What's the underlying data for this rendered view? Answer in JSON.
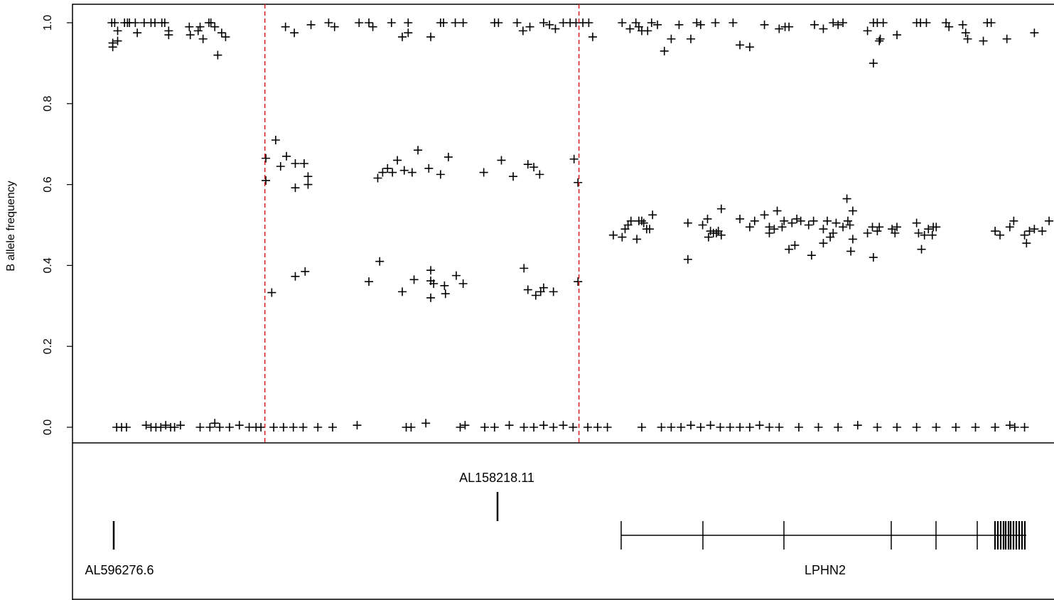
{
  "chart_data": {
    "type": "scatter",
    "ylabel": "B allele frequency",
    "xlabel": "",
    "ylim": [
      0,
      1
    ],
    "yticks": [
      "0.0",
      "0.2",
      "0.4",
      "0.6",
      "0.8",
      "1.0"
    ],
    "marker": "+",
    "marker_color": "#000000",
    "boundary_color": "#d62728",
    "boundaries": [
      0.196,
      0.516
    ],
    "points": [
      [
        0.04,
        1.0
      ],
      [
        0.043,
        1.0
      ],
      [
        0.041,
        0.95
      ],
      [
        0.041,
        0.94
      ],
      [
        0.046,
        0.98
      ],
      [
        0.046,
        0.955
      ],
      [
        0.053,
        1.0
      ],
      [
        0.056,
        1.0
      ],
      [
        0.058,
        1.0
      ],
      [
        0.064,
        1.0
      ],
      [
        0.066,
        0.975
      ],
      [
        0.073,
        1.0
      ],
      [
        0.08,
        1.0
      ],
      [
        0.084,
        1.0
      ],
      [
        0.091,
        1.0
      ],
      [
        0.094,
        1.0
      ],
      [
        0.098,
        0.97
      ],
      [
        0.098,
        0.98
      ],
      [
        0.119,
        0.99
      ],
      [
        0.12,
        0.97
      ],
      [
        0.128,
        0.98
      ],
      [
        0.13,
        0.99
      ],
      [
        0.133,
        0.96
      ],
      [
        0.139,
        1.0
      ],
      [
        0.141,
        1.0
      ],
      [
        0.145,
        0.99
      ],
      [
        0.148,
        0.92
      ],
      [
        0.152,
        0.975
      ],
      [
        0.156,
        0.965
      ],
      [
        0.217,
        0.99
      ],
      [
        0.226,
        0.975
      ],
      [
        0.243,
        0.995
      ],
      [
        0.261,
        1.0
      ],
      [
        0.267,
        0.99
      ],
      [
        0.292,
        1.0
      ],
      [
        0.302,
        1.0
      ],
      [
        0.306,
        0.99
      ],
      [
        0.325,
        1.0
      ],
      [
        0.336,
        0.965
      ],
      [
        0.342,
        1.0
      ],
      [
        0.342,
        0.975
      ],
      [
        0.365,
        0.965
      ],
      [
        0.375,
        1.0
      ],
      [
        0.378,
        1.0
      ],
      [
        0.39,
        1.0
      ],
      [
        0.398,
        1.0
      ],
      [
        0.43,
        1.0
      ],
      [
        0.434,
        1.0
      ],
      [
        0.453,
        1.0
      ],
      [
        0.459,
        0.98
      ],
      [
        0.466,
        0.99
      ],
      [
        0.48,
        1.0
      ],
      [
        0.486,
        0.995
      ],
      [
        0.492,
        0.985
      ],
      [
        0.5,
        1.0
      ],
      [
        0.507,
        1.0
      ],
      [
        0.513,
        1.0
      ],
      [
        0.52,
        1.0
      ],
      [
        0.526,
        1.0
      ],
      [
        0.53,
        0.965
      ],
      [
        0.56,
        1.0
      ],
      [
        0.568,
        0.985
      ],
      [
        0.574,
        1.0
      ],
      [
        0.577,
        0.99
      ],
      [
        0.58,
        0.98
      ],
      [
        0.586,
        0.98
      ],
      [
        0.59,
        1.0
      ],
      [
        0.596,
        0.995
      ],
      [
        0.603,
        0.93
      ],
      [
        0.61,
        0.96
      ],
      [
        0.618,
        0.995
      ],
      [
        0.63,
        0.96
      ],
      [
        0.636,
        1.0
      ],
      [
        0.64,
        0.995
      ],
      [
        0.655,
        1.0
      ],
      [
        0.673,
        1.0
      ],
      [
        0.68,
        0.945
      ],
      [
        0.69,
        0.94
      ],
      [
        0.705,
        0.995
      ],
      [
        0.72,
        0.985
      ],
      [
        0.726,
        0.99
      ],
      [
        0.73,
        0.99
      ],
      [
        0.756,
        0.995
      ],
      [
        0.765,
        0.985
      ],
      [
        0.775,
        1.0
      ],
      [
        0.78,
        0.995
      ],
      [
        0.785,
        1.0
      ],
      [
        0.81,
        0.98
      ],
      [
        0.816,
        1.0
      ],
      [
        0.816,
        0.9
      ],
      [
        0.82,
        1.0
      ],
      [
        0.823,
        0.96
      ],
      [
        0.826,
        1.0
      ],
      [
        0.822,
        0.955
      ],
      [
        0.84,
        0.97
      ],
      [
        0.86,
        1.0
      ],
      [
        0.864,
        1.0
      ],
      [
        0.87,
        1.0
      ],
      [
        0.89,
        1.0
      ],
      [
        0.893,
        0.99
      ],
      [
        0.907,
        0.995
      ],
      [
        0.91,
        0.975
      ],
      [
        0.912,
        0.96
      ],
      [
        0.928,
        0.955
      ],
      [
        0.932,
        1.0
      ],
      [
        0.936,
        1.0
      ],
      [
        0.952,
        0.96
      ],
      [
        0.98,
        0.975
      ],
      [
        0.197,
        0.665
      ],
      [
        0.197,
        0.61
      ],
      [
        0.203,
        0.333
      ],
      [
        0.207,
        0.71
      ],
      [
        0.212,
        0.645
      ],
      [
        0.218,
        0.67
      ],
      [
        0.227,
        0.592
      ],
      [
        0.227,
        0.652
      ],
      [
        0.227,
        0.373
      ],
      [
        0.236,
        0.652
      ],
      [
        0.237,
        0.385
      ],
      [
        0.24,
        0.6
      ],
      [
        0.24,
        0.62
      ],
      [
        0.302,
        0.36
      ],
      [
        0.311,
        0.616
      ],
      [
        0.313,
        0.41
      ],
      [
        0.316,
        0.63
      ],
      [
        0.321,
        0.64
      ],
      [
        0.326,
        0.63
      ],
      [
        0.331,
        0.66
      ],
      [
        0.336,
        0.335
      ],
      [
        0.338,
        0.635
      ],
      [
        0.346,
        0.63
      ],
      [
        0.348,
        0.365
      ],
      [
        0.352,
        0.685
      ],
      [
        0.363,
        0.64
      ],
      [
        0.365,
        0.362
      ],
      [
        0.365,
        0.388
      ],
      [
        0.365,
        0.32
      ],
      [
        0.368,
        0.355
      ],
      [
        0.375,
        0.625
      ],
      [
        0.379,
        0.35
      ],
      [
        0.38,
        0.33
      ],
      [
        0.383,
        0.668
      ],
      [
        0.391,
        0.375
      ],
      [
        0.398,
        0.355
      ],
      [
        0.419,
        0.63
      ],
      [
        0.437,
        0.66
      ],
      [
        0.449,
        0.62
      ],
      [
        0.46,
        0.393
      ],
      [
        0.464,
        0.34
      ],
      [
        0.464,
        0.65
      ],
      [
        0.47,
        0.643
      ],
      [
        0.472,
        0.326
      ],
      [
        0.476,
        0.625
      ],
      [
        0.477,
        0.335
      ],
      [
        0.48,
        0.345
      ],
      [
        0.49,
        0.335
      ],
      [
        0.511,
        0.663
      ],
      [
        0.515,
        0.605
      ],
      [
        0.515,
        0.36
      ],
      [
        0.551,
        0.475
      ],
      [
        0.56,
        0.47
      ],
      [
        0.563,
        0.49
      ],
      [
        0.566,
        0.5
      ],
      [
        0.569,
        0.51
      ],
      [
        0.575,
        0.465
      ],
      [
        0.577,
        0.51
      ],
      [
        0.58,
        0.51
      ],
      [
        0.582,
        0.505
      ],
      [
        0.585,
        0.49
      ],
      [
        0.588,
        0.49
      ],
      [
        0.591,
        0.525
      ],
      [
        0.627,
        0.415
      ],
      [
        0.627,
        0.505
      ],
      [
        0.642,
        0.5
      ],
      [
        0.647,
        0.515
      ],
      [
        0.648,
        0.47
      ],
      [
        0.65,
        0.485
      ],
      [
        0.653,
        0.48
      ],
      [
        0.656,
        0.48
      ],
      [
        0.658,
        0.485
      ],
      [
        0.661,
        0.54
      ],
      [
        0.661,
        0.475
      ],
      [
        0.68,
        0.515
      ],
      [
        0.69,
        0.495
      ],
      [
        0.695,
        0.51
      ],
      [
        0.705,
        0.525
      ],
      [
        0.71,
        0.48
      ],
      [
        0.71,
        0.495
      ],
      [
        0.715,
        0.49
      ],
      [
        0.718,
        0.535
      ],
      [
        0.723,
        0.495
      ],
      [
        0.725,
        0.51
      ],
      [
        0.73,
        0.44
      ],
      [
        0.733,
        0.505
      ],
      [
        0.736,
        0.45
      ],
      [
        0.738,
        0.515
      ],
      [
        0.742,
        0.51
      ],
      [
        0.75,
        0.5
      ],
      [
        0.753,
        0.425
      ],
      [
        0.755,
        0.51
      ],
      [
        0.765,
        0.49
      ],
      [
        0.765,
        0.455
      ],
      [
        0.769,
        0.51
      ],
      [
        0.772,
        0.47
      ],
      [
        0.775,
        0.48
      ],
      [
        0.778,
        0.505
      ],
      [
        0.785,
        0.495
      ],
      [
        0.789,
        0.565
      ],
      [
        0.79,
        0.51
      ],
      [
        0.792,
        0.5
      ],
      [
        0.793,
        0.435
      ],
      [
        0.795,
        0.465
      ],
      [
        0.795,
        0.535
      ],
      [
        0.81,
        0.48
      ],
      [
        0.815,
        0.495
      ],
      [
        0.816,
        0.42
      ],
      [
        0.82,
        0.485
      ],
      [
        0.822,
        0.495
      ],
      [
        0.835,
        0.49
      ],
      [
        0.838,
        0.48
      ],
      [
        0.84,
        0.495
      ],
      [
        0.86,
        0.505
      ],
      [
        0.862,
        0.48
      ],
      [
        0.865,
        0.44
      ],
      [
        0.868,
        0.475
      ],
      [
        0.872,
        0.49
      ],
      [
        0.876,
        0.475
      ],
      [
        0.877,
        0.495
      ],
      [
        0.88,
        0.495
      ],
      [
        0.94,
        0.485
      ],
      [
        0.945,
        0.475
      ],
      [
        0.955,
        0.495
      ],
      [
        0.959,
        0.51
      ],
      [
        0.97,
        0.475
      ],
      [
        0.972,
        0.455
      ],
      [
        0.975,
        0.485
      ],
      [
        0.98,
        0.49
      ],
      [
        0.988,
        0.485
      ],
      [
        0.995,
        0.51
      ],
      [
        0.045,
        0.0
      ],
      [
        0.05,
        0.0
      ],
      [
        0.055,
        0.0
      ],
      [
        0.075,
        0.005
      ],
      [
        0.08,
        0.0
      ],
      [
        0.085,
        0.0
      ],
      [
        0.09,
        0.0
      ],
      [
        0.095,
        0.005
      ],
      [
        0.1,
        0.0
      ],
      [
        0.104,
        0.0
      ],
      [
        0.11,
        0.005
      ],
      [
        0.13,
        0.0
      ],
      [
        0.14,
        0.0
      ],
      [
        0.145,
        0.01
      ],
      [
        0.15,
        0.0
      ],
      [
        0.16,
        0.0
      ],
      [
        0.17,
        0.005
      ],
      [
        0.18,
        0.0
      ],
      [
        0.187,
        0.0
      ],
      [
        0.192,
        0.0
      ],
      [
        0.205,
        0.0
      ],
      [
        0.215,
        0.0
      ],
      [
        0.225,
        0.0
      ],
      [
        0.235,
        0.0
      ],
      [
        0.25,
        0.0
      ],
      [
        0.265,
        0.0
      ],
      [
        0.29,
        0.005
      ],
      [
        0.34,
        0.0
      ],
      [
        0.345,
        0.0
      ],
      [
        0.36,
        0.01
      ],
      [
        0.395,
        0.0
      ],
      [
        0.4,
        0.005
      ],
      [
        0.42,
        0.0
      ],
      [
        0.43,
        0.0
      ],
      [
        0.445,
        0.005
      ],
      [
        0.46,
        0.0
      ],
      [
        0.47,
        0.0
      ],
      [
        0.48,
        0.005
      ],
      [
        0.49,
        0.0
      ],
      [
        0.5,
        0.005
      ],
      [
        0.51,
        0.0
      ],
      [
        0.525,
        0.0
      ],
      [
        0.535,
        0.0
      ],
      [
        0.545,
        0.0
      ],
      [
        0.58,
        0.0
      ],
      [
        0.6,
        0.0
      ],
      [
        0.61,
        0.0
      ],
      [
        0.62,
        0.0
      ],
      [
        0.63,
        0.005
      ],
      [
        0.64,
        0.0
      ],
      [
        0.65,
        0.005
      ],
      [
        0.66,
        0.0
      ],
      [
        0.67,
        0.0
      ],
      [
        0.68,
        0.0
      ],
      [
        0.69,
        0.0
      ],
      [
        0.7,
        0.005
      ],
      [
        0.71,
        0.0
      ],
      [
        0.72,
        0.0
      ],
      [
        0.74,
        0.0
      ],
      [
        0.76,
        0.0
      ],
      [
        0.78,
        0.0
      ],
      [
        0.8,
        0.005
      ],
      [
        0.82,
        0.0
      ],
      [
        0.84,
        0.0
      ],
      [
        0.86,
        0.0
      ],
      [
        0.88,
        0.0
      ],
      [
        0.9,
        0.0
      ],
      [
        0.92,
        0.0
      ],
      [
        0.94,
        0.0
      ],
      [
        0.955,
        0.005
      ],
      [
        0.96,
        0.0
      ],
      [
        0.97,
        0.0
      ]
    ]
  },
  "gene_track": {
    "labels": [
      {
        "text": "AL596276.6"
      },
      {
        "text": "AL158218.11"
      },
      {
        "text": "LPHN2"
      }
    ]
  }
}
